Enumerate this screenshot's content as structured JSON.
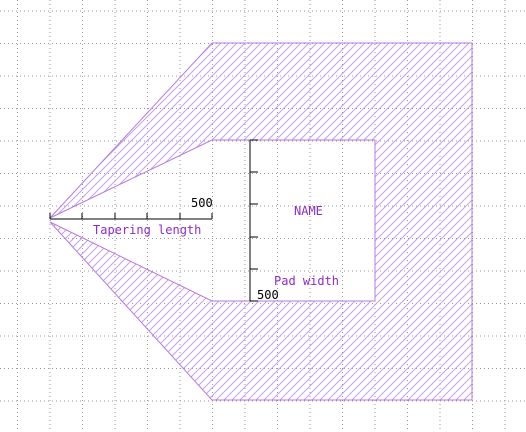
{
  "canvas": {
    "grid": "dotted",
    "shape_style": "diagonal-hatch outline",
    "colors": {
      "background": "#ffffff",
      "grid": "#9a9a9a",
      "shape_outline": "#b57ae3",
      "hatch": "#c7a0ec",
      "label": "#8e2bc9",
      "ruler": "#000000"
    }
  },
  "labels": {
    "name": "NAME",
    "pad_width": "Pad width",
    "tapering_length": "Tapering length"
  },
  "rulers": {
    "horizontal_scale_value": "500",
    "vertical_scale_value": "500"
  }
}
